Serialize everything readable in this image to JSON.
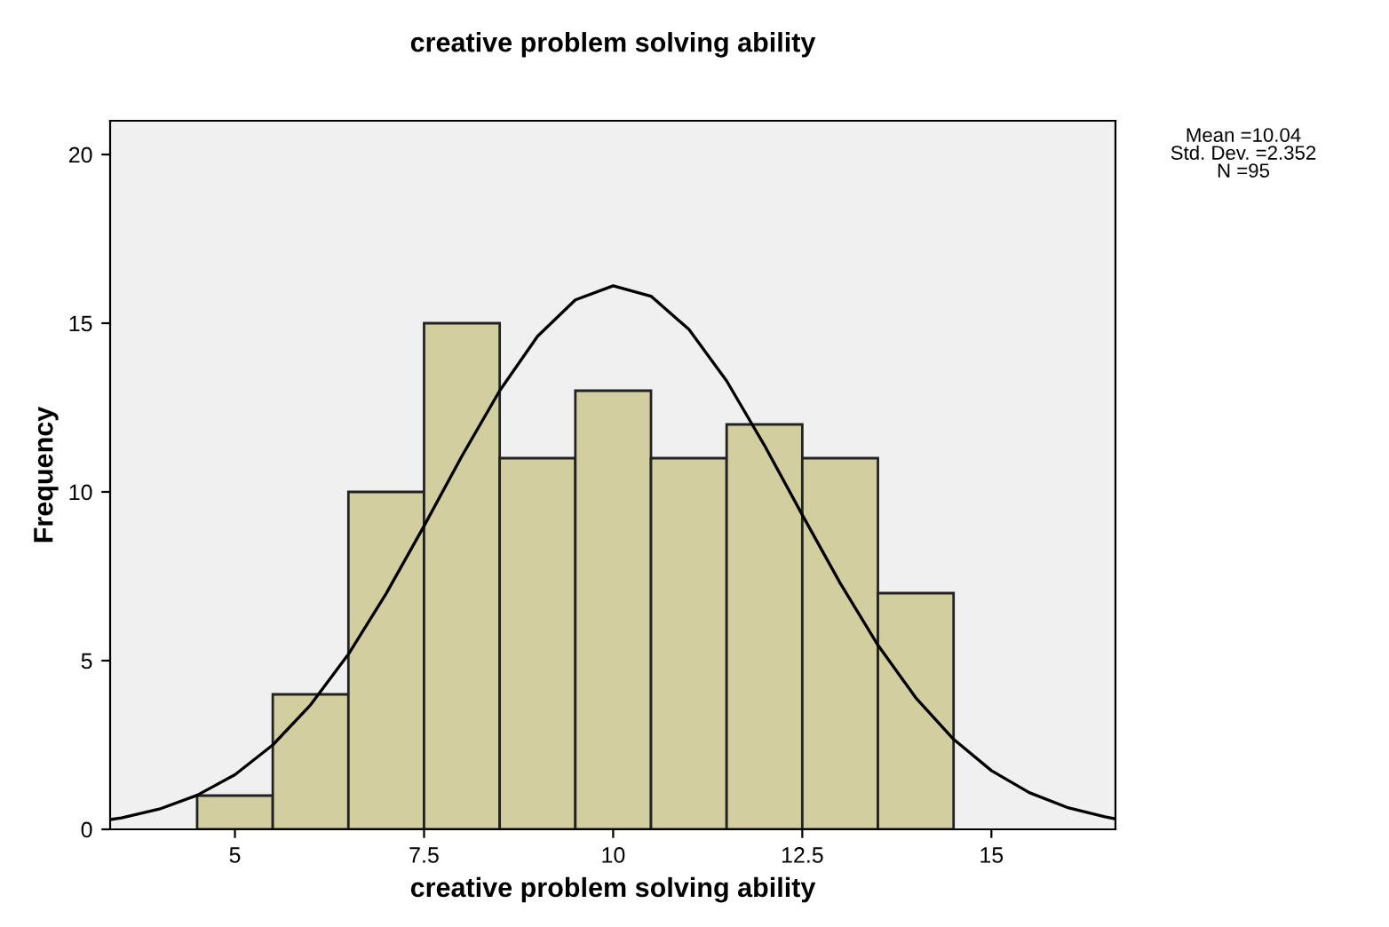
{
  "chart_data": {
    "type": "histogram",
    "title": "creative problem solving ability",
    "xlabel": "creative problem solving ability",
    "ylabel": "Frequency",
    "bins": [
      4.5,
      5.5,
      6.5,
      7.5,
      8.5,
      9.5,
      10.5,
      11.5,
      12.5,
      13.5,
      14.5
    ],
    "series": [
      {
        "type": "histogram",
        "color": "#d3cea0",
        "values": [
          1,
          4,
          10,
          15,
          11,
          13,
          11,
          12,
          11,
          7
        ]
      },
      {
        "type": "line",
        "color": "#000000",
        "x": [
          3.35,
          3.5,
          4,
          4.5,
          5,
          5.5,
          6,
          6.5,
          7,
          7.5,
          8,
          8.5,
          9,
          9.5,
          10,
          10.5,
          11,
          11.5,
          12,
          12.5,
          13,
          13.5,
          14,
          14.5,
          15,
          15.5,
          16,
          16.5,
          16.64
        ],
        "values": [
          0.29,
          0.34,
          0.6,
          1.01,
          1.62,
          2.5,
          3.69,
          5.19,
          6.99,
          8.99,
          11.06,
          13.0,
          14.61,
          15.69,
          16.11,
          15.8,
          14.82,
          13.29,
          11.38,
          9.32,
          7.3,
          5.46,
          3.9,
          2.67,
          1.74,
          1.09,
          0.65,
          0.37,
          0.31
        ]
      }
    ],
    "xlim": [
      3.35,
      16.64
    ],
    "xticks": [
      5,
      7.5,
      10,
      12.5,
      15
    ],
    "ylim": [
      0,
      21
    ],
    "yticks": [
      0,
      5,
      10,
      15,
      20
    ],
    "grid": false,
    "legend": false,
    "annotations": [
      "Mean =10.04",
      "Std. Dev. =2.352",
      "N =95"
    ]
  }
}
